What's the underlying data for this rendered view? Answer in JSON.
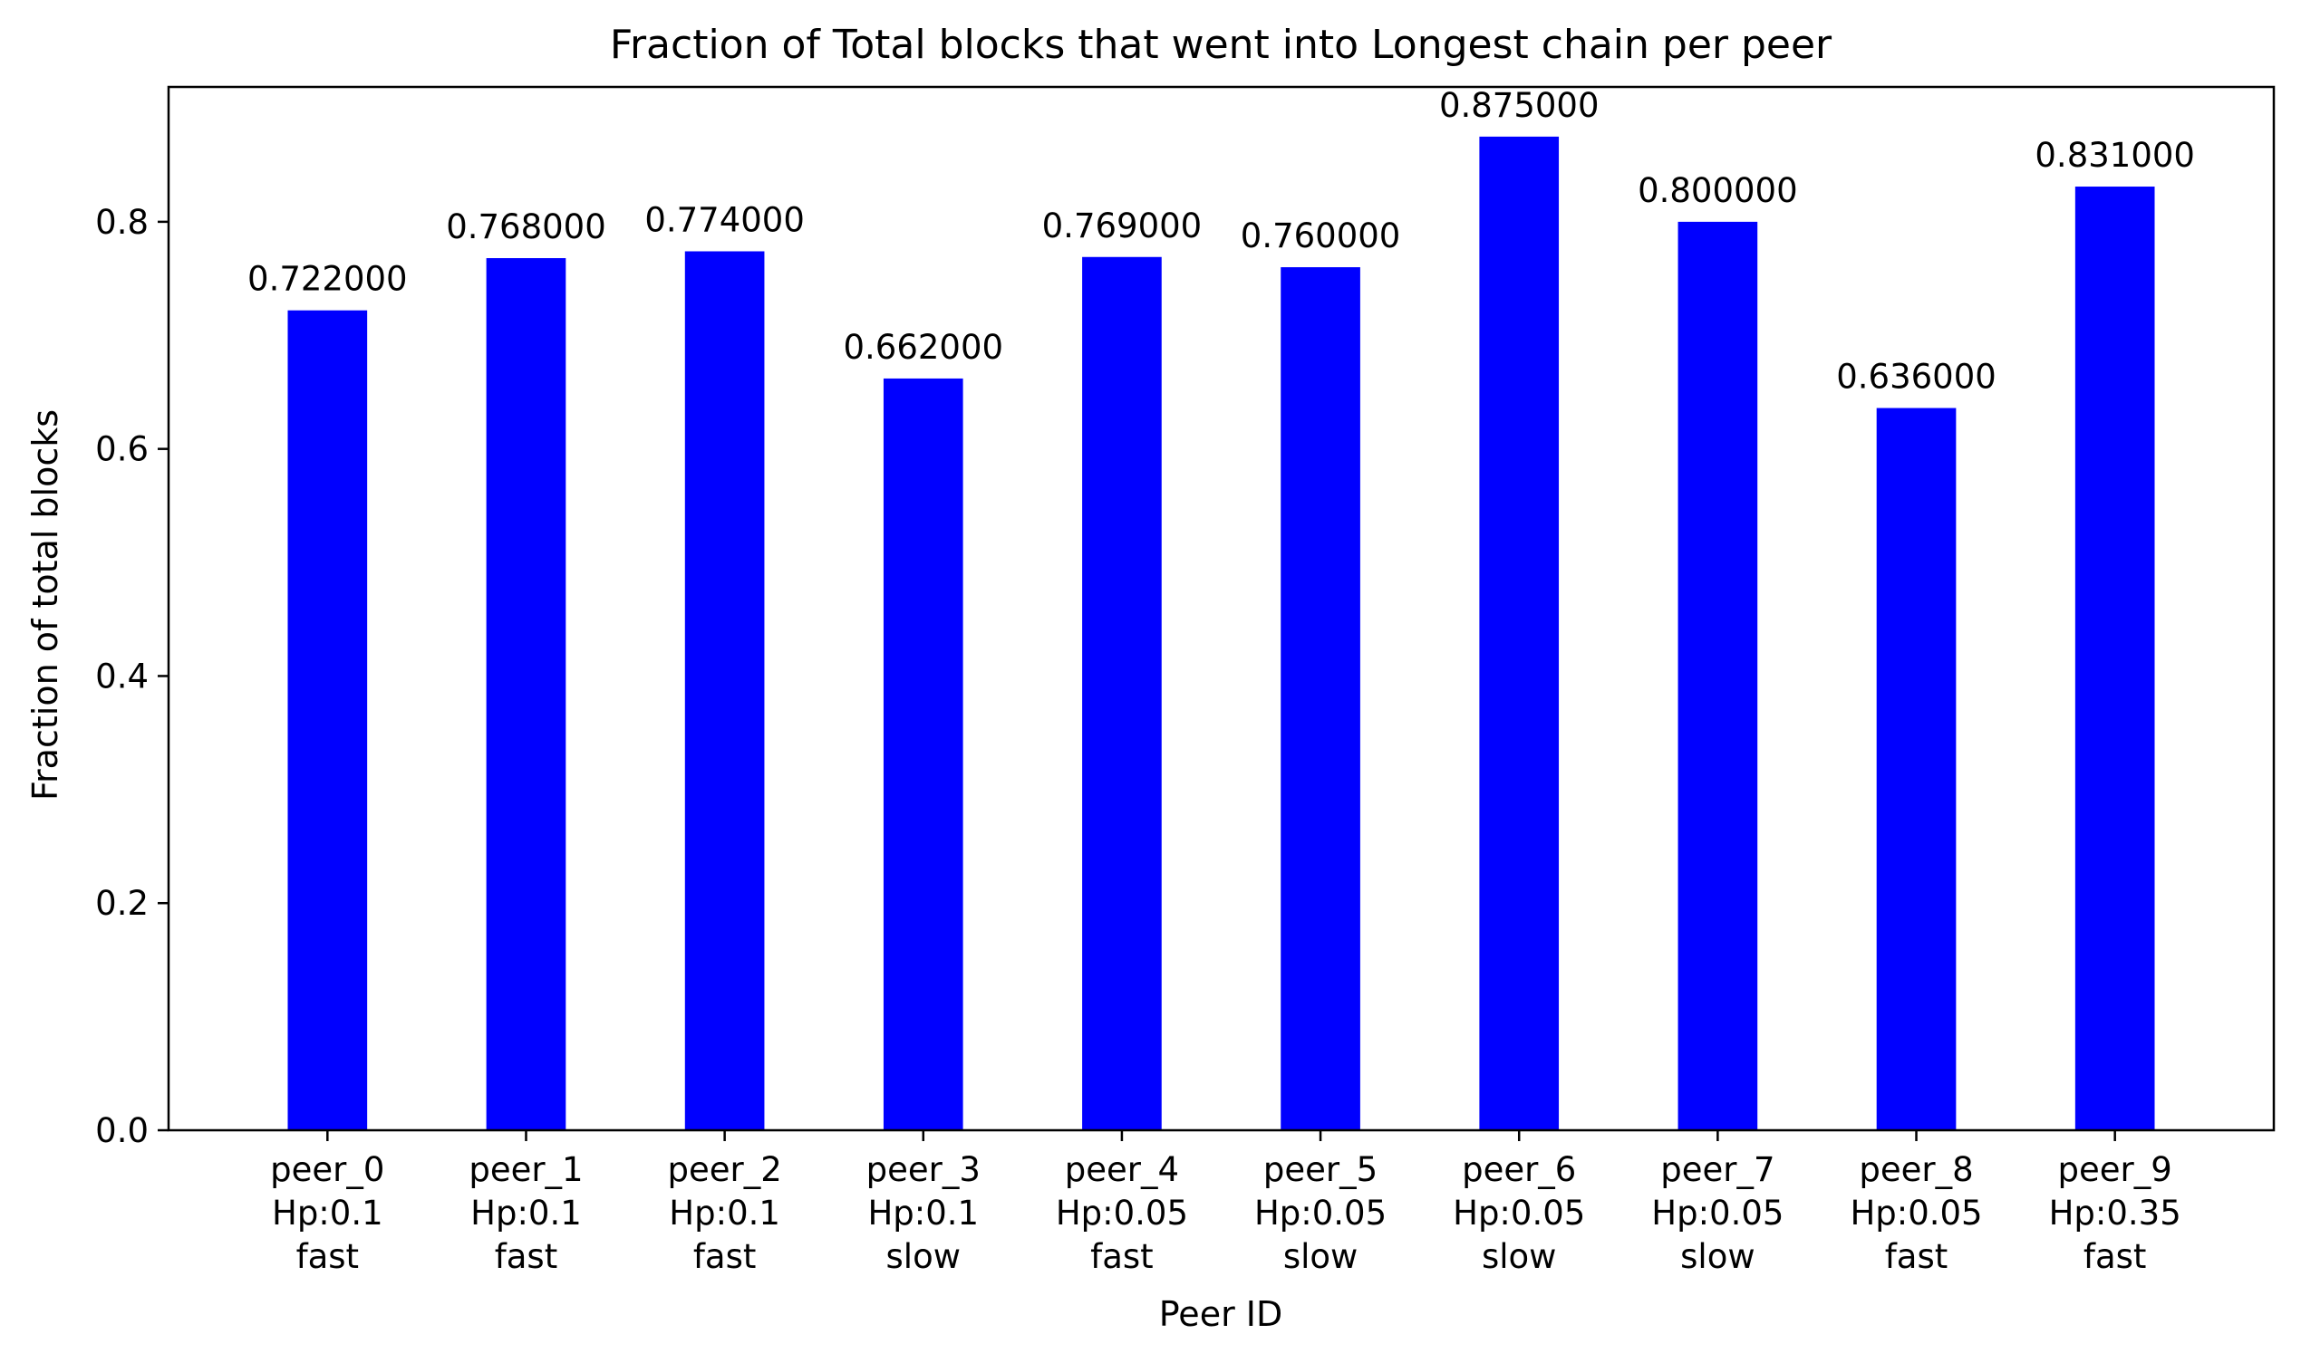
{
  "chart_data": {
    "type": "bar",
    "title": "Fraction of Total blocks that went into Longest chain per peer",
    "xlabel": "Peer ID",
    "ylabel": "Fraction of total blocks",
    "categories": [
      [
        "peer_0",
        "Hp:0.1",
        "fast"
      ],
      [
        "peer_1",
        "Hp:0.1",
        "fast"
      ],
      [
        "peer_2",
        "Hp:0.1",
        "fast"
      ],
      [
        "peer_3",
        "Hp:0.1",
        "slow"
      ],
      [
        "peer_4",
        "Hp:0.05",
        "fast"
      ],
      [
        "peer_5",
        "Hp:0.05",
        "slow"
      ],
      [
        "peer_6",
        "Hp:0.05",
        "slow"
      ],
      [
        "peer_7",
        "Hp:0.05",
        "slow"
      ],
      [
        "peer_8",
        "Hp:0.05",
        "fast"
      ],
      [
        "peer_9",
        "Hp:0.35",
        "fast"
      ]
    ],
    "values": [
      0.722,
      0.768,
      0.774,
      0.662,
      0.769,
      0.76,
      0.875,
      0.8,
      0.636,
      0.831
    ],
    "data_labels": [
      "0.722000",
      "0.768000",
      "0.774000",
      "0.662000",
      "0.769000",
      "0.760000",
      "0.875000",
      "0.800000",
      "0.636000",
      "0.831000"
    ],
    "yticks": [
      "0.0",
      "0.2",
      "0.4",
      "0.6",
      "0.8"
    ],
    "ytick_values": [
      0,
      0.2,
      0.4,
      0.6,
      0.8
    ],
    "ylim": [
      0,
      0.91875
    ],
    "bar_color": "#0000ff",
    "grid": false,
    "legend": "none"
  }
}
